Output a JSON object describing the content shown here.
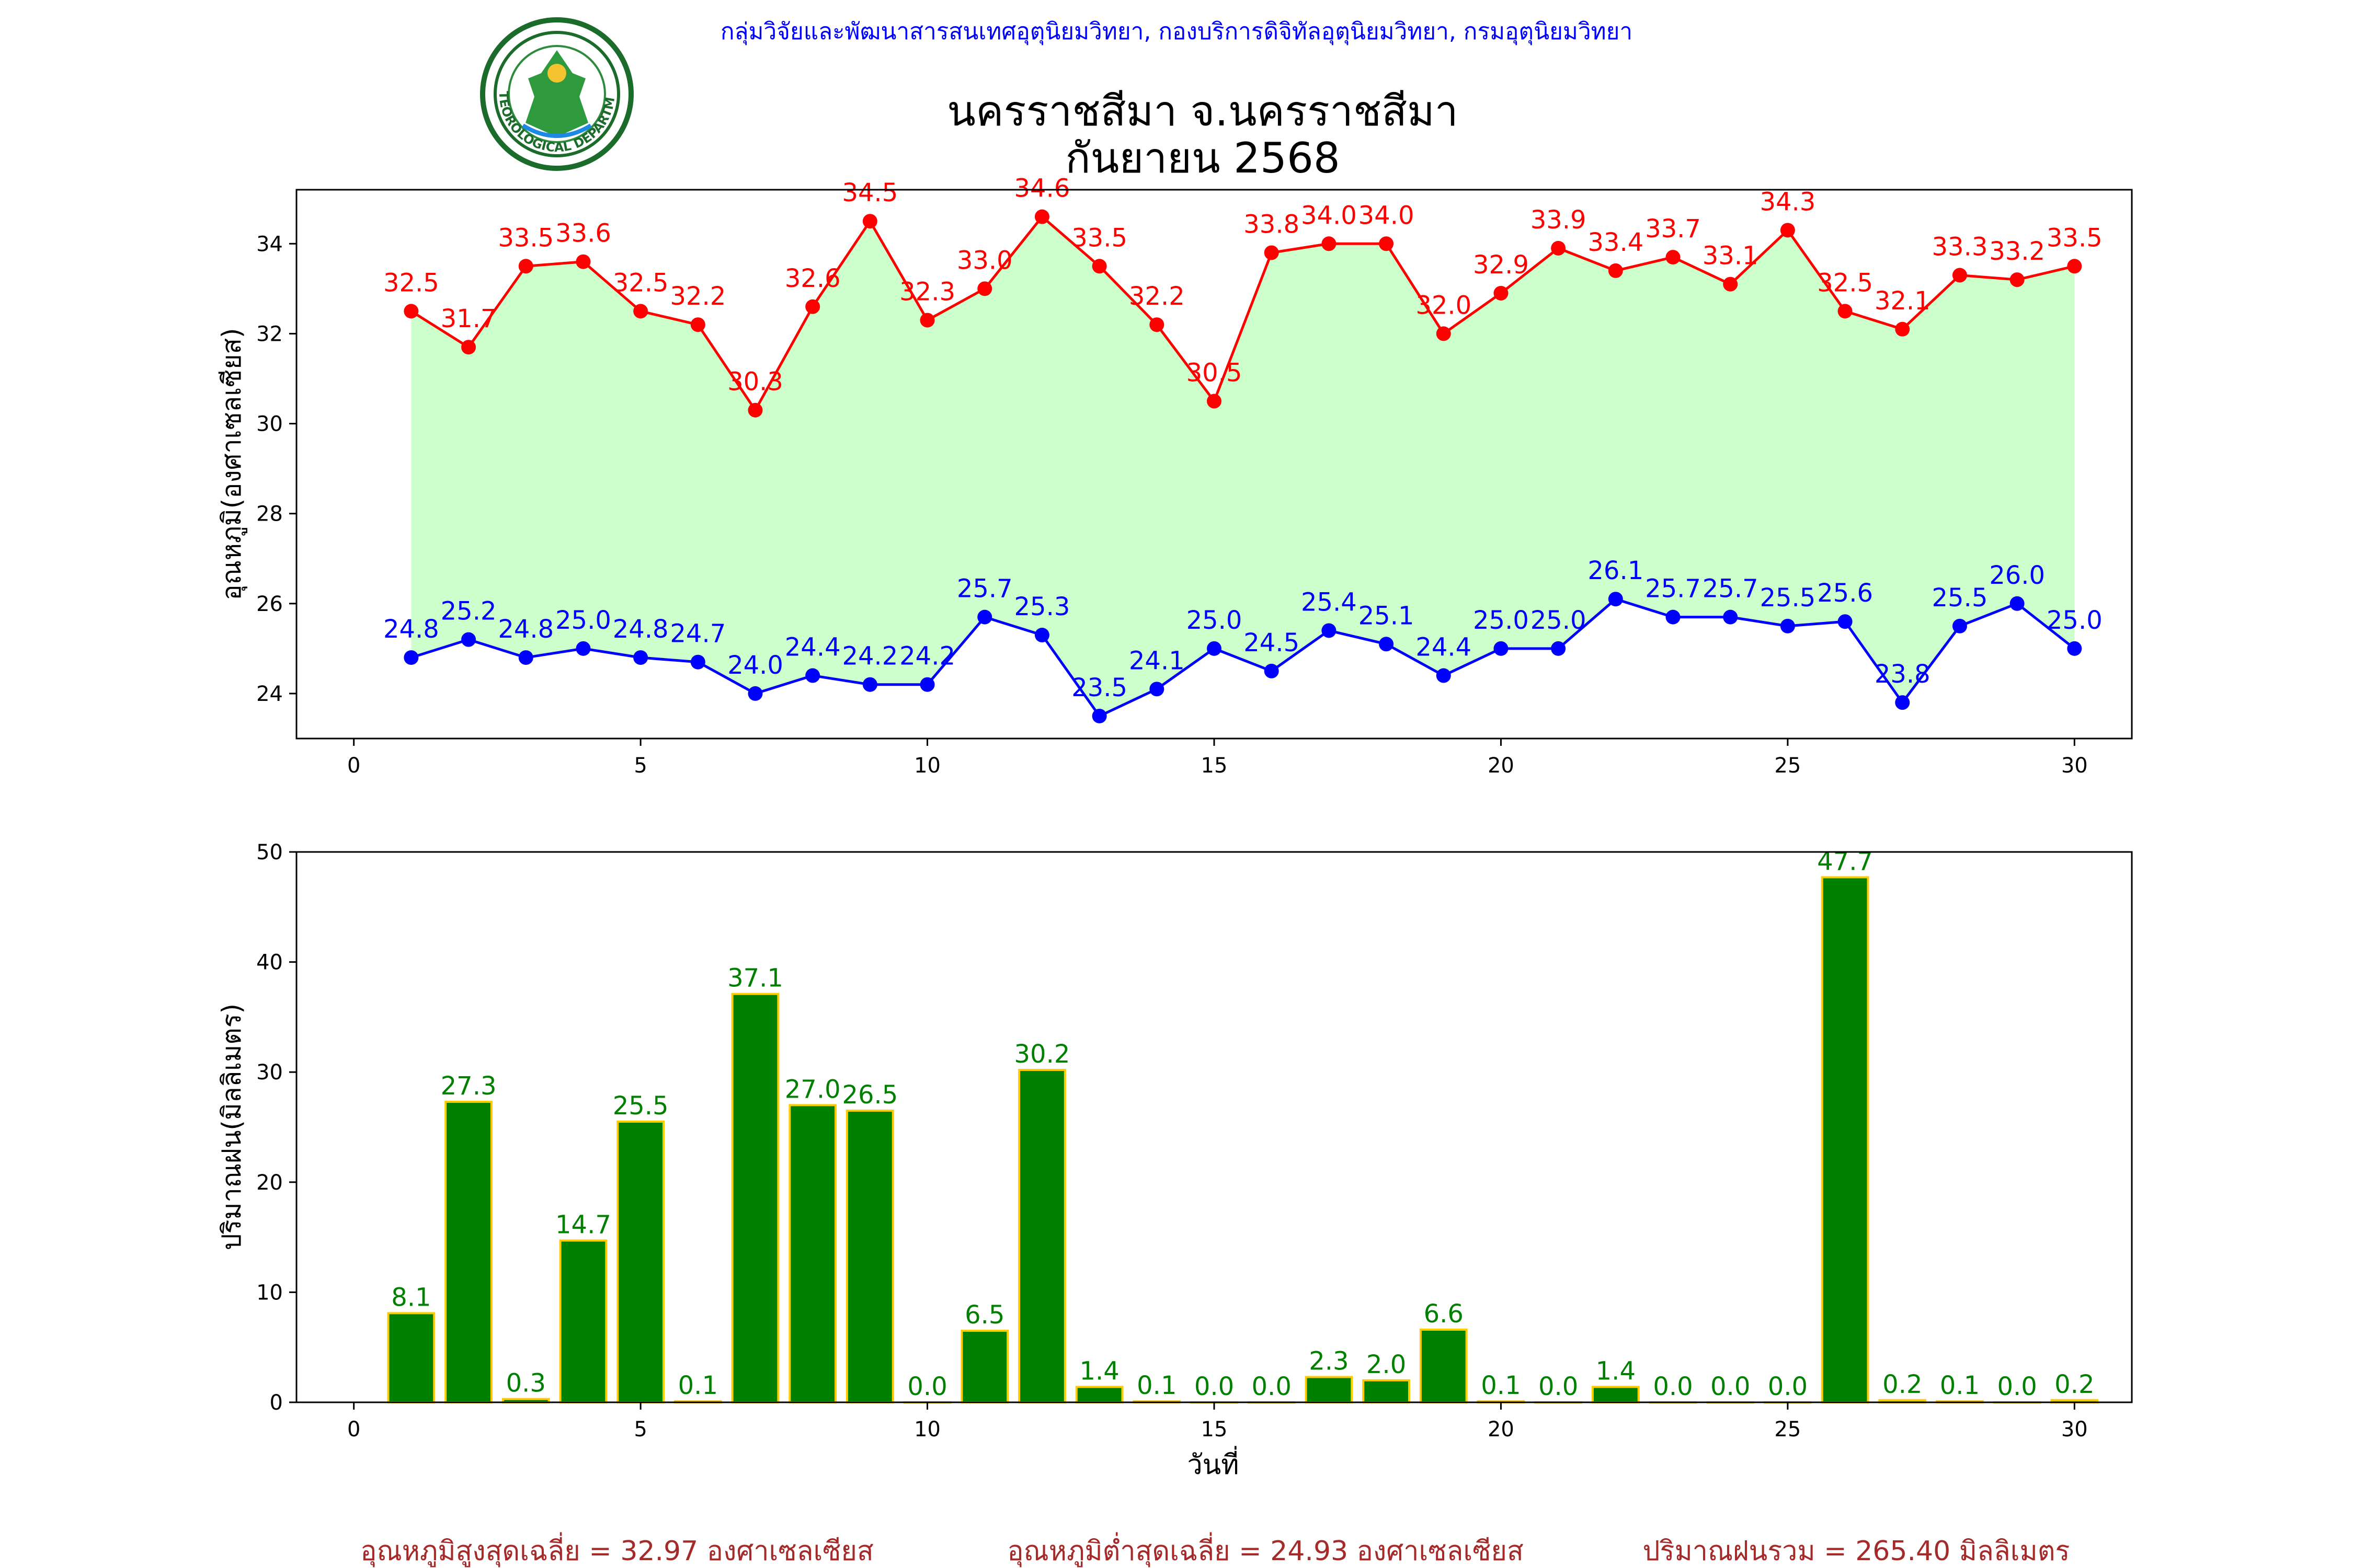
{
  "header": {
    "org_line": "กลุ่มวิจัยและพัฒนาสารสนเทศอุตุนิยมวิทยา, กองบริการดิจิทัลอุตุนิยมวิทยา, กรมอุตุนิยมวิทยา",
    "title_line1": "นครราชสีมา จ.นครราชสีมา",
    "title_line2": "กันยายน 2568",
    "logo_text": "METEOROLOGICAL DEPARTMENT"
  },
  "colors": {
    "max_series": "#ff0000",
    "min_series": "#0000ff",
    "fill": "#ccffcc",
    "bar_fill": "#008000",
    "bar_edge": "#ffcc00",
    "org_text": "#0000ff",
    "summary_text": "#a52a2a"
  },
  "chart_data": [
    {
      "type": "line",
      "ylabel": "อุณหภูมิ(องศาเซลเซียส)",
      "xlabel": "",
      "xlim": [
        -1,
        31
      ],
      "ylim": [
        23,
        35.2
      ],
      "xticks": [
        0,
        5,
        10,
        15,
        20,
        25,
        30
      ],
      "yticks": [
        24,
        26,
        28,
        30,
        32,
        34
      ],
      "grid": false,
      "x": [
        1,
        2,
        3,
        4,
        5,
        6,
        7,
        8,
        9,
        10,
        11,
        12,
        13,
        14,
        15,
        16,
        17,
        18,
        19,
        20,
        21,
        22,
        23,
        24,
        25,
        26,
        27,
        28,
        29,
        30
      ],
      "series": [
        {
          "values": [
            32.5,
            31.7,
            33.5,
            33.6,
            32.5,
            32.2,
            30.3,
            32.6,
            34.5,
            32.3,
            33.0,
            34.6,
            33.5,
            32.2,
            30.5,
            33.8,
            34.0,
            34.0,
            32.0,
            32.9,
            33.9,
            33.4,
            33.7,
            33.1,
            34.3,
            32.5,
            32.1,
            33.3,
            33.2,
            33.5
          ],
          "labels": [
            "32.5",
            "31.7",
            "33.5",
            "33.6",
            "32.5",
            "32.2",
            "30.3",
            "32.6",
            "34.5",
            "32.3",
            "33.0",
            "34.6",
            "33.5",
            "32.2",
            "30.5",
            "33.8",
            "34.0",
            "34.0",
            "32.0",
            "32.9",
            "33.9",
            "33.4",
            "33.7",
            "33.1",
            "34.3",
            "32.5",
            "32.1",
            "33.3",
            "33.2",
            "33.5"
          ]
        },
        {
          "values": [
            24.8,
            25.2,
            24.8,
            25.0,
            24.8,
            24.7,
            24.0,
            24.4,
            24.2,
            24.2,
            25.7,
            25.3,
            23.5,
            24.1,
            25.0,
            24.5,
            25.4,
            25.1,
            24.4,
            25.0,
            25.0,
            26.1,
            25.7,
            25.7,
            25.5,
            25.6,
            23.8,
            25.5,
            26.0,
            25.0
          ],
          "labels": [
            "24.8",
            "25.2",
            "24.8",
            "25.0",
            "24.8",
            "24.7",
            "24.0",
            "24.4",
            "24.2",
            "24.2",
            "25.7",
            "25.3",
            "23.5",
            "24.1",
            "25.0",
            "24.5",
            "25.4",
            "25.1",
            "24.4",
            "25.0",
            "25.0",
            "26.1",
            "25.7",
            "25.7",
            "25.5",
            "25.6",
            "23.8",
            "25.5",
            "26.0",
            "25.0"
          ]
        }
      ]
    },
    {
      "type": "bar",
      "ylabel": "ปริมาณฝน(มิลลิเมตร)",
      "xlabel": "วันที่",
      "xlim": [
        -1,
        31
      ],
      "ylim": [
        0,
        50
      ],
      "xticks": [
        0,
        5,
        10,
        15,
        20,
        25,
        30
      ],
      "yticks": [
        0,
        10,
        20,
        30,
        40,
        50
      ],
      "grid": false,
      "x": [
        1,
        2,
        3,
        4,
        5,
        6,
        7,
        8,
        9,
        10,
        11,
        12,
        13,
        14,
        15,
        16,
        17,
        18,
        19,
        20,
        21,
        22,
        23,
        24,
        25,
        26,
        27,
        28,
        29,
        30
      ],
      "values": [
        8.1,
        27.3,
        0.3,
        14.7,
        25.5,
        0.1,
        37.1,
        27.0,
        26.5,
        0.0,
        6.5,
        30.2,
        1.4,
        0.1,
        0.0,
        0.0,
        2.3,
        2.0,
        6.6,
        0.1,
        0.0,
        1.4,
        0.0,
        0.0,
        0.0,
        47.7,
        0.2,
        0.1,
        0.0,
        0.2
      ],
      "labels": [
        "8.1",
        "27.3",
        "0.3",
        "14.7",
        "25.5",
        "0.1",
        "37.1",
        "27.0",
        "26.5",
        "0.0",
        "6.5",
        "30.2",
        "1.4",
        "0.1",
        "0.0",
        "0.0",
        "2.3",
        "2.0",
        "6.6",
        "0.1",
        "0.0",
        "1.4",
        "0.0",
        "0.0",
        "0.0",
        "47.7",
        "0.2",
        "0.1",
        "0.0",
        "0.2"
      ]
    }
  ],
  "summary": {
    "avg_max": "อุณหภูมิสูงสุดเฉลี่ย = 32.97 องศาเซลเซียส",
    "avg_min": "อุณหภูมิต่ำสุดเฉลี่ย = 24.93 องศาเซลเซียส",
    "total_rain": "ปริมาณฝนรวม = 265.40 มิลลิเมตร"
  }
}
